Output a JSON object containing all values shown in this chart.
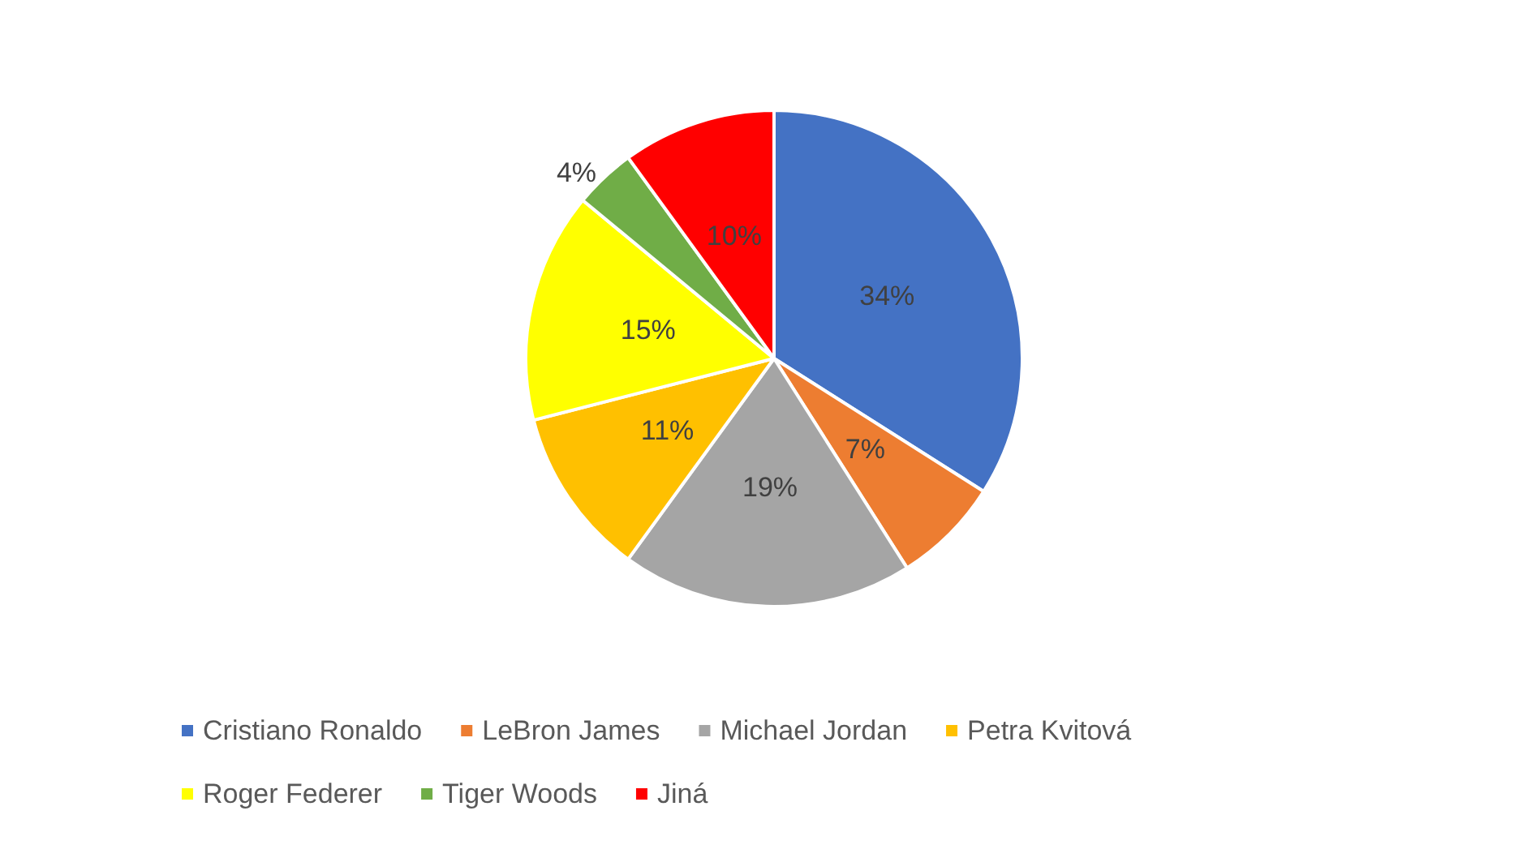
{
  "chart_data": {
    "type": "pie",
    "categories": [
      "Cristiano Ronaldo",
      "LeBron James",
      "Michael Jordan",
      "Petra Kvitová",
      "Roger Federer",
      "Tiger Woods",
      "Jiná"
    ],
    "values": [
      34,
      7,
      19,
      11,
      15,
      4,
      10
    ],
    "colors": [
      "#4472c4",
      "#ed7d31",
      "#a5a5a5",
      "#ffc000",
      "#ffff00",
      "#70ad47",
      "#ff0000"
    ],
    "value_labels": [
      "34%",
      "7%",
      "19%",
      "11%",
      "15%",
      "4%",
      "10%"
    ],
    "legend": "bottom"
  }
}
